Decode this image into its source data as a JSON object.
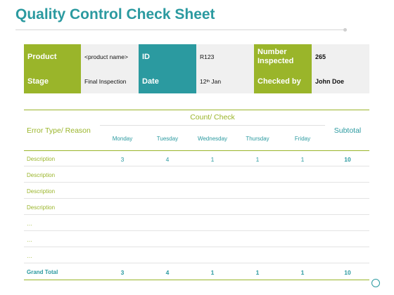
{
  "title": "Quality Control Check Sheet",
  "info": {
    "product_label": "Product",
    "product_value": "<product name>",
    "id_label": "ID",
    "id_value": "R123",
    "inspected_label": "Number Inspected",
    "inspected_value": "265",
    "stage_label": "Stage",
    "stage_value": "Final Inspection",
    "date_label": "Date",
    "date_day": "12",
    "date_suffix": "th",
    "date_month": " Jan",
    "checked_label": "Checked by",
    "checked_value": "John Doe"
  },
  "table": {
    "count_header": "Count/ Check",
    "error_header": "Error Type/ Reason",
    "subtotal_header": "Subtotal",
    "days": [
      "Monday",
      "Tuesday",
      "Wednesday",
      "Thursday",
      "Friday"
    ],
    "rows": [
      {
        "label": "Description",
        "values": [
          "3",
          "4",
          "1",
          "1",
          "1"
        ],
        "subtotal": "10"
      },
      {
        "label": "Description",
        "values": [
          "",
          "",
          "",
          "",
          ""
        ],
        "subtotal": ""
      },
      {
        "label": "Description",
        "values": [
          "",
          "",
          "",
          "",
          ""
        ],
        "subtotal": ""
      },
      {
        "label": "Description",
        "values": [
          "",
          "",
          "",
          "",
          ""
        ],
        "subtotal": ""
      },
      {
        "label": "…",
        "values": [
          "",
          "",
          "",
          "",
          ""
        ],
        "subtotal": ""
      },
      {
        "label": "…",
        "values": [
          "",
          "",
          "",
          "",
          ""
        ],
        "subtotal": ""
      },
      {
        "label": "…",
        "values": [
          "",
          "",
          "",
          "",
          ""
        ],
        "subtotal": ""
      }
    ],
    "total": {
      "label": "Grand Total",
      "values": [
        "3",
        "4",
        "1",
        "1",
        "1"
      ],
      "subtotal": "10"
    }
  },
  "colors": {
    "teal": "#2b9aa0",
    "green": "#9ab52a",
    "cell_bg": "#f0f0f0"
  }
}
